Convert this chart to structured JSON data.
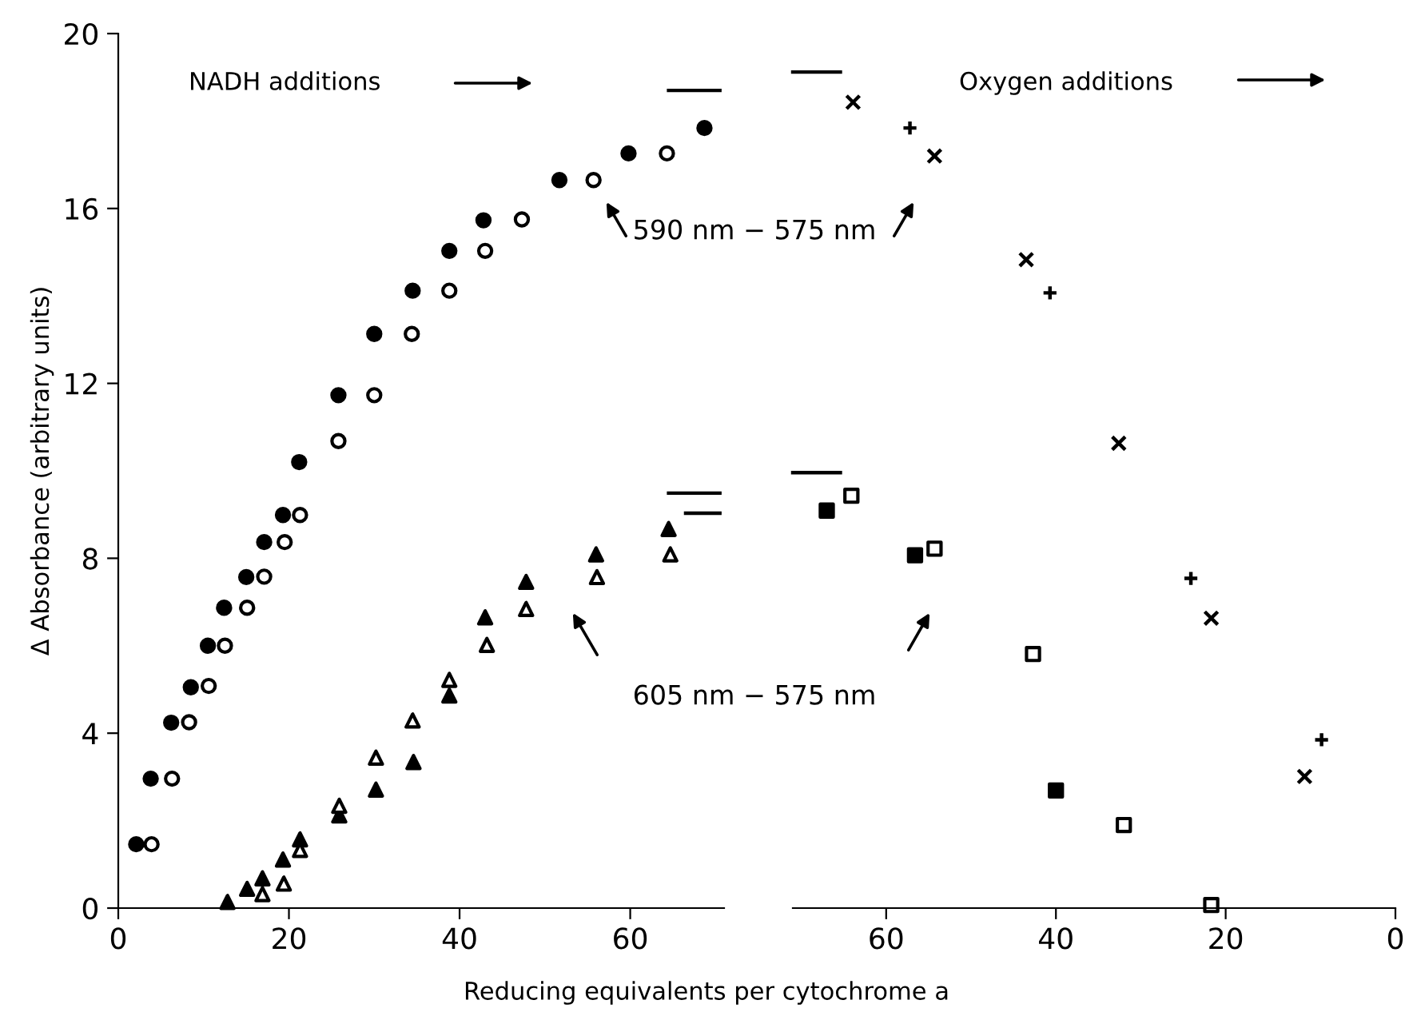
{
  "chart_data": [
    {
      "type": "scatter",
      "xlabel": "Reducing equivalents per cytochrome a",
      "ylabel": "Δ Absorbance (arbitrary units)",
      "xlim": [
        0,
        71
      ],
      "xticks": [
        0,
        20,
        40,
        60
      ],
      "ylim": [
        0,
        20
      ],
      "yticks": [
        0,
        4,
        8,
        12,
        16,
        20
      ],
      "grid": false,
      "legend": false,
      "annotations": [
        "NADH additions",
        "590 nm − 575 nm",
        "605 nm − 575 nm"
      ],
      "series": [
        {
          "color": "#000000",
          "marker": "circle",
          "x": [
            2.1,
            3.8,
            6.2,
            8.5,
            10.5,
            12.4,
            15.0,
            17.1,
            19.3,
            21.2,
            25.8,
            30.0,
            34.5,
            38.8,
            42.8,
            51.7,
            59.8,
            68.7
          ],
          "values": [
            1.46,
            2.96,
            4.24,
            5.05,
            6.0,
            6.87,
            7.57,
            8.37,
            8.99,
            10.2,
            11.73,
            13.13,
            14.12,
            15.03,
            15.73,
            16.65,
            17.26,
            17.84
          ]
        },
        {
          "color": "#000000",
          "marker": "circle",
          "x": [
            3.9,
            6.3,
            8.3,
            10.6,
            12.5,
            15.1,
            17.1,
            19.5,
            21.3,
            25.8,
            30.0,
            34.4,
            38.8,
            43.0,
            47.3,
            55.7,
            64.3
          ],
          "values": [
            1.46,
            2.96,
            4.25,
            5.08,
            6.0,
            6.87,
            7.58,
            8.37,
            8.99,
            10.68,
            11.73,
            13.13,
            14.12,
            15.03,
            15.75,
            16.65,
            17.26
          ]
        },
        {
          "color": "#000000",
          "marker": "triangle",
          "x": [
            12.8,
            15.1,
            16.9,
            19.3,
            21.3,
            25.9,
            30.2,
            34.6,
            38.8,
            43.0,
            47.8,
            56.0,
            64.5
          ],
          "values": [
            0.14,
            0.44,
            0.68,
            1.11,
            1.57,
            2.12,
            2.71,
            3.34,
            4.86,
            6.65,
            7.46,
            8.09,
            8.67
          ]
        },
        {
          "color": "#000000",
          "marker": "triangle",
          "x": [
            16.9,
            19.4,
            21.3,
            25.9,
            30.2,
            34.5,
            38.8,
            43.2,
            47.8,
            56.1,
            64.7
          ],
          "values": [
            0.32,
            0.56,
            1.33,
            2.34,
            3.44,
            4.29,
            5.22,
            6.02,
            6.84,
            7.57,
            8.09
          ]
        },
        {
          "type": "line",
          "color": "#000000",
          "marker": "none",
          "x": [
            64.5,
            70.5
          ],
          "values": [
            18.7,
            18.7
          ]
        },
        {
          "type": "line",
          "color": "#000000",
          "marker": "none",
          "x": [
            64.5,
            70.5
          ],
          "values": [
            9.49,
            9.49
          ]
        },
        {
          "type": "line",
          "color": "#000000",
          "marker": "none",
          "x": [
            66.5,
            70.5
          ],
          "values": [
            9.03,
            9.03
          ]
        }
      ]
    },
    {
      "type": "scatter",
      "xlim": [
        71,
        0
      ],
      "xticks": [
        60,
        40,
        20,
        0
      ],
      "ylim": [
        0,
        20
      ],
      "tick_labels": "x",
      "grid": false,
      "legend": false,
      "annotations": [
        "Oxygen additions"
      ],
      "series": [
        {
          "color": "#000000",
          "marker": "cross",
          "x": [
            63.9,
            54.3,
            43.5,
            32.6,
            21.7,
            10.7
          ],
          "values": [
            18.43,
            17.2,
            14.83,
            10.63,
            6.63,
            3.01
          ]
        },
        {
          "color": "#000000",
          "marker": "plus",
          "x": [
            57.2,
            40.7,
            24.1,
            8.7
          ],
          "values": [
            17.84,
            14.07,
            7.54,
            3.85
          ]
        },
        {
          "color": "#000000",
          "marker": "square",
          "x": [
            67.0,
            56.6,
            40.0
          ],
          "values": [
            9.09,
            8.07,
            2.69
          ]
        },
        {
          "color": "#000000",
          "marker": "square",
          "x": [
            64.1,
            54.3,
            42.7,
            32.0,
            21.7
          ],
          "values": [
            9.43,
            8.22,
            5.81,
            1.9,
            0.07
          ]
        },
        {
          "type": "line",
          "color": "#000000",
          "marker": "none",
          "x": [
            71,
            65.4
          ],
          "values": [
            19.12,
            19.12
          ]
        },
        {
          "type": "line",
          "color": "#000000",
          "marker": "none",
          "x": [
            71,
            65.4
          ],
          "values": [
            9.96,
            9.96
          ]
        }
      ]
    }
  ]
}
